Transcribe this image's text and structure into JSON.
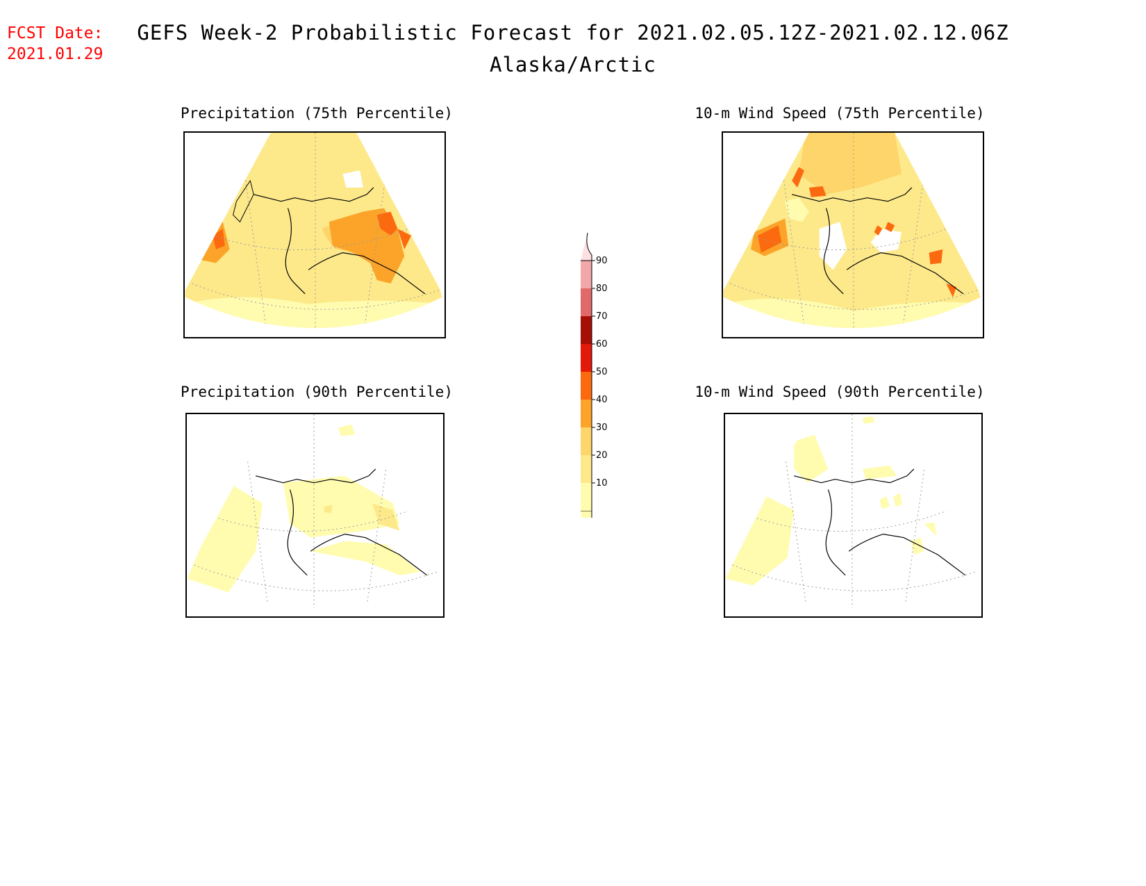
{
  "forecast_date": {
    "label": "FCST Date:",
    "value": "2021.01.29"
  },
  "title": "GEFS Week-2 Probabilistic Forecast for 2021.02.05.12Z-2021.02.12.06Z",
  "subtitle": "Alaska/Arctic",
  "panels": [
    {
      "title": "Precipitation (75th Percentile)",
      "variable": "precipitation",
      "percentile": 75
    },
    {
      "title": "10-m Wind Speed (75th Percentile)",
      "variable": "wind_speed_10m",
      "percentile": 75
    },
    {
      "title": "Precipitation (90th Percentile)",
      "variable": "precipitation",
      "percentile": 90
    },
    {
      "title": "10-m Wind Speed (90th Percentile)",
      "variable": "wind_speed_10m",
      "percentile": 90
    }
  ],
  "colorbar": {
    "levels": [
      "10",
      "20",
      "30",
      "40",
      "50",
      "60",
      "70",
      "80",
      "90"
    ],
    "colors": [
      "#fffcb0",
      "#fde98a",
      "#fdd56a",
      "#fca42a",
      "#fc6a10",
      "#e31a0a",
      "#a50f05",
      "#e06a6a",
      "#f0a8a8",
      "#fde0e0"
    ]
  }
}
